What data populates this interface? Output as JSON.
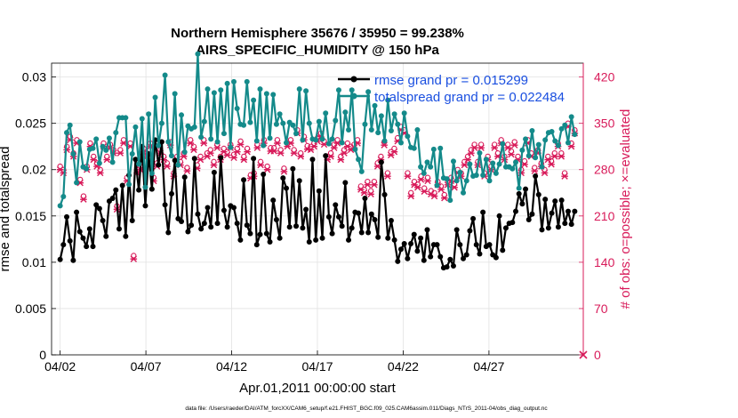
{
  "chart_data": {
    "type": "line",
    "title": "Northern Hemisphere 35676 / 35950 = 99.238%",
    "subtitle": "AIRS_SPECIFIC_HUMIDITY @ 150 hPa",
    "xlabel": "Apr.01,2011 00:00:00 start",
    "ylabel_left": "rmse and totalspread",
    "ylabel_right": "# of obs: o=possible; ×=evaluated",
    "footer": "data file: /Users/raeder/DAI/ATM_forcXX/CAM6_setup/f.e21.FHIST_BGC.f09_025.CAM6assim.011/Diags_NTrS_2011-04/obs_diag_output.nc",
    "x_unit": "days since Apr.01,2011 00:00",
    "xlim": [
      0.5,
      31.5
    ],
    "ylim_left": [
      0,
      0.0315
    ],
    "ylim_right": [
      0,
      441
    ],
    "x_ticks": [
      {
        "x": 1,
        "label": "04/02"
      },
      {
        "x": 6,
        "label": "04/07"
      },
      {
        "x": 11,
        "label": "04/12"
      },
      {
        "x": 16,
        "label": "04/17"
      },
      {
        "x": 21,
        "label": "04/22"
      },
      {
        "x": 26,
        "label": "04/27"
      }
    ],
    "y_ticks_left": [
      {
        "v": 0,
        "label": "0"
      },
      {
        "v": 0.005,
        "label": "0.005"
      },
      {
        "v": 0.01,
        "label": "0.01"
      },
      {
        "v": 0.015,
        "label": "0.015"
      },
      {
        "v": 0.02,
        "label": "0.02"
      },
      {
        "v": 0.025,
        "label": "0.025"
      },
      {
        "v": 0.03,
        "label": "0.03"
      }
    ],
    "y_ticks_right": [
      {
        "v": 0,
        "label": "0"
      },
      {
        "v": 70,
        "label": "70"
      },
      {
        "v": 140,
        "label": "140"
      },
      {
        "v": 210,
        "label": "210"
      },
      {
        "v": 280,
        "label": "280"
      },
      {
        "v": 350,
        "label": "350"
      },
      {
        "v": 420,
        "label": "420"
      }
    ],
    "grid": true,
    "legend_position": "top-right",
    "colors": {
      "rmse": "#000000",
      "totalspread": "#148a8a",
      "obs": "#d81b5a",
      "legend_text": "#1a4fe0"
    },
    "series": [
      {
        "name": "rmse grand pr = 0.015299",
        "axis": "left",
        "values": [
          0.0103,
          0.0119,
          0.0149,
          0.0123,
          0.0102,
          0.0154,
          0.0133,
          0.0126,
          0.0117,
          0.0136,
          0.0117,
          0.0162,
          0.0158,
          0.0145,
          0.0128,
          0.0166,
          0.0169,
          0.0178,
          0.0136,
          0.0183,
          0.0128,
          0.0194,
          0.0145,
          0.0211,
          0.0178,
          0.0225,
          0.0161,
          0.0217,
          0.0179,
          0.0232,
          0.0205,
          0.023,
          0.0162,
          0.0132,
          0.0174,
          0.021,
          0.0147,
          0.0144,
          0.0192,
          0.0133,
          0.014,
          0.0212,
          0.0152,
          0.0136,
          0.0142,
          0.0159,
          0.0138,
          0.0197,
          0.0142,
          0.0213,
          0.0156,
          0.0138,
          0.0161,
          0.0159,
          0.0142,
          0.0124,
          0.0189,
          0.014,
          0.0131,
          0.0212,
          0.0119,
          0.013,
          0.0195,
          0.0131,
          0.0122,
          0.0167,
          0.0146,
          0.0126,
          0.0191,
          0.018,
          0.0138,
          0.0201,
          0.0139,
          0.0188,
          0.0137,
          0.0157,
          0.0122,
          0.0211,
          0.0124,
          0.0177,
          0.0126,
          0.0215,
          0.0149,
          0.0131,
          0.0162,
          0.0149,
          0.0139,
          0.0186,
          0.0124,
          0.0137,
          0.0154,
          0.0153,
          0.0132,
          0.0169,
          0.0132,
          0.0152,
          0.0146,
          0.0127,
          0.0208,
          0.0173,
          0.0126,
          0.0145,
          0.0124,
          0.0101,
          0.0114,
          0.012,
          0.0104,
          0.012,
          0.013,
          0.0112,
          0.0126,
          0.0102,
          0.0135,
          0.0106,
          0.0119,
          0.0119,
          0.0106,
          0.0094,
          0.0095,
          0.0103,
          0.0096,
          0.0135,
          0.0119,
          0.0104,
          0.0108,
          0.0134,
          0.0147,
          0.0119,
          0.0109,
          0.0154,
          0.0117,
          0.0119,
          0.0108,
          0.0105,
          0.015,
          0.0113,
          0.0137,
          0.0142,
          0.0143,
          0.0155,
          0.0174,
          0.0163,
          0.0179,
          0.0146,
          0.0152,
          0.0193,
          0.0173,
          0.0135,
          0.0168,
          0.0137,
          0.0153,
          0.0166,
          0.0138,
          0.0167,
          0.0142,
          0.0155,
          0.0141,
          0.0155
        ]
      },
      {
        "name": "totalspread grand pr = 0.022484",
        "axis": "left",
        "values": [
          0.0161,
          0.0171,
          0.024,
          0.0248,
          0.0217,
          0.0186,
          0.023,
          0.0203,
          0.0201,
          0.0222,
          0.0223,
          0.0233,
          0.0207,
          0.0225,
          0.0221,
          0.0234,
          0.0208,
          0.024,
          0.0256,
          0.0256,
          0.0256,
          0.0184,
          0.0217,
          0.0246,
          0.0206,
          0.0255,
          0.0181,
          0.026,
          0.0196,
          0.0278,
          0.0226,
          0.025,
          0.0302,
          0.023,
          0.0215,
          0.0282,
          0.0205,
          0.0259,
          0.0219,
          0.0247,
          0.0244,
          0.0246,
          0.0325,
          0.0235,
          0.0252,
          0.0287,
          0.0233,
          0.0283,
          0.023,
          0.0286,
          0.0239,
          0.0293,
          0.0224,
          0.0295,
          0.0266,
          0.0249,
          0.0248,
          0.0295,
          0.0251,
          0.0275,
          0.0231,
          0.0287,
          0.0226,
          0.0282,
          0.0234,
          0.0281,
          0.0249,
          0.026,
          0.025,
          0.0229,
          0.0251,
          0.0248,
          0.0239,
          0.0287,
          0.0232,
          0.0285,
          0.025,
          0.0233,
          0.0232,
          0.0252,
          0.0233,
          0.0261,
          0.0228,
          0.0233,
          0.0253,
          0.0286,
          0.0229,
          0.0262,
          0.0243,
          0.0286,
          0.0222,
          0.0211,
          0.0198,
          0.0249,
          0.0284,
          0.0243,
          0.0269,
          0.024,
          0.0258,
          0.0231,
          0.0275,
          0.0242,
          0.026,
          0.0249,
          0.0229,
          0.0261,
          0.0236,
          0.0224,
          0.0223,
          0.0243,
          0.0203,
          0.0196,
          0.0208,
          0.0203,
          0.0222,
          0.0183,
          0.0223,
          0.0191,
          0.019,
          0.0167,
          0.0209,
          0.0188,
          0.0197,
          0.0175,
          0.0188,
          0.0206,
          0.0193,
          0.0194,
          0.0218,
          0.0194,
          0.0211,
          0.0188,
          0.0207,
          0.0196,
          0.0206,
          0.0228,
          0.0203,
          0.0203,
          0.0201,
          0.0208,
          0.018,
          0.0221,
          0.0233,
          0.0215,
          0.0242,
          0.0213,
          0.0227,
          0.0203,
          0.0232,
          0.024,
          0.0241,
          0.0231,
          0.0226,
          0.0244,
          0.0248,
          0.0229,
          0.0257,
          0.0238
        ]
      },
      {
        "name": "possible",
        "axis": "right",
        "marker": "o",
        "values": [
          285,
          280,
          315,
          330,
          305,
          325,
          265,
          240,
          285,
          320,
          300,
          290,
          280,
          320,
          300,
          318,
          310,
          225,
          310,
          325,
          268,
          320,
          150,
          280,
          285,
          312,
          305,
          320,
          268,
          290,
          310,
          300,
          290,
          322,
          275,
          300,
          292,
          305,
          283,
          325,
          315,
          287,
          300,
          325,
          305,
          310,
          292,
          318,
          300,
          312,
          307,
          318,
          303,
          312,
          323,
          300,
          312,
          272,
          275,
          318,
          292,
          325,
          285,
          313,
          313,
          325,
          310,
          282,
          320,
          325,
          310,
          340,
          305,
          330,
          316,
          315,
          320,
          328,
          335,
          323,
          300,
          305,
          318,
          325,
          300,
          310,
          320,
          315,
          318,
          325,
          255,
          250,
          262,
          248,
          262,
          290,
          300,
          322,
          275,
          307,
          312,
          328,
          345,
          340,
          275,
          245,
          262,
          258,
          270,
          252,
          268,
          248,
          245,
          262,
          255,
          242,
          262,
          268,
          258,
          280,
          275,
          292,
          300,
          310,
          318,
          292,
          318,
          275,
          300,
          285,
          318,
          305,
          325,
          300,
          318,
          308,
          322,
          300,
          280,
          293,
          325,
          305,
          283,
          310,
          290,
          280,
          300,
          293,
          305,
          320,
          305,
          275,
          350,
          320,
          340
        ]
      },
      {
        "name": "evaluated",
        "axis": "right",
        "marker": "x",
        "values": [
          280,
          275,
          310,
          325,
          300,
          320,
          260,
          235,
          280,
          315,
          295,
          285,
          275,
          315,
          295,
          313,
          305,
          220,
          305,
          320,
          263,
          315,
          145,
          275,
          280,
          307,
          300,
          315,
          263,
          285,
          305,
          295,
          285,
          317,
          270,
          295,
          287,
          300,
          278,
          320,
          310,
          282,
          295,
          320,
          300,
          305,
          287,
          313,
          295,
          307,
          302,
          313,
          298,
          307,
          318,
          295,
          307,
          267,
          270,
          313,
          287,
          320,
          280,
          308,
          308,
          320,
          305,
          277,
          315,
          320,
          305,
          335,
          300,
          325,
          311,
          310,
          315,
          323,
          330,
          318,
          295,
          300,
          313,
          320,
          295,
          305,
          315,
          310,
          313,
          320,
          250,
          245,
          257,
          243,
          257,
          285,
          295,
          317,
          270,
          302,
          307,
          323,
          340,
          335,
          270,
          240,
          257,
          253,
          265,
          247,
          263,
          243,
          240,
          257,
          250,
          237,
          257,
          263,
          253,
          275,
          270,
          287,
          295,
          305,
          313,
          287,
          313,
          270,
          295,
          280,
          313,
          300,
          320,
          295,
          313,
          303,
          317,
          295,
          275,
          288,
          320,
          300,
          278,
          305,
          285,
          275,
          295,
          288,
          300,
          315,
          300,
          270,
          345,
          315,
          335
        ]
      }
    ]
  }
}
